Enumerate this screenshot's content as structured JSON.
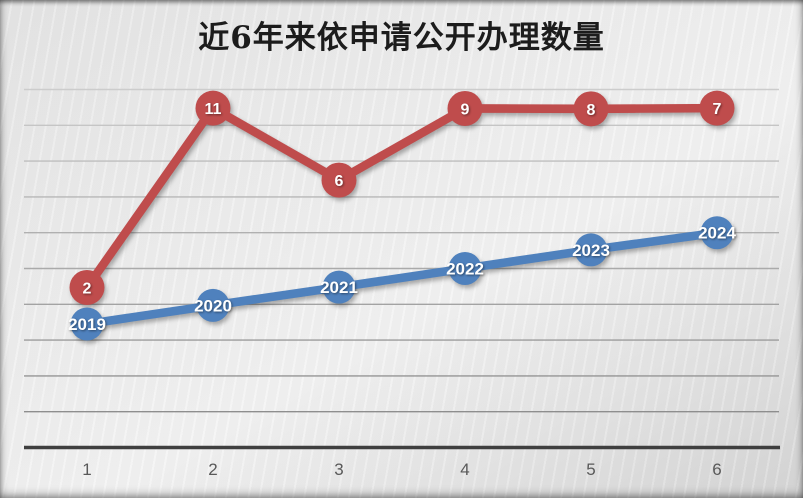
{
  "slide": {
    "kind": "chart-slide"
  },
  "chart_data": {
    "type": "line",
    "title": "近6年来依申请公开办理数量",
    "categories": [
      "1",
      "2",
      "3",
      "4",
      "5",
      "6"
    ],
    "series": [
      {
        "name": "count-series",
        "color": "#BF4C4C",
        "values": [
          2,
          11,
          6,
          9,
          8,
          7
        ],
        "labels": [
          "2",
          "11",
          "6",
          "9",
          "8",
          "7"
        ],
        "plot_values": [
          4.47,
          9.48,
          7.47,
          9.47,
          9.46,
          9.48
        ]
      },
      {
        "name": "year-series",
        "color": "#4F81BD",
        "values": [
          2019,
          2020,
          2021,
          2022,
          2023,
          2024
        ],
        "labels": [
          "2019",
          "2020",
          "2021",
          "2022",
          "2023",
          "2024"
        ],
        "plot_values": [
          3.45,
          3.97,
          4.48,
          5.0,
          5.52,
          6.0
        ]
      }
    ],
    "xlabel": "",
    "ylabel": "",
    "ylim": [
      0,
      12.4
    ],
    "grid": "horizontal",
    "gridline_values": [
      1,
      2,
      3,
      4,
      5,
      6,
      7,
      8,
      9,
      10
    ],
    "legend": "none",
    "marker_label_color": "#FFFFFF",
    "axis_color": "#3F3F3F",
    "tick_label_color": "#595959",
    "gridline_color_bottom": "#8E8E8E",
    "gridline_color_top": "#CCCCCC"
  }
}
